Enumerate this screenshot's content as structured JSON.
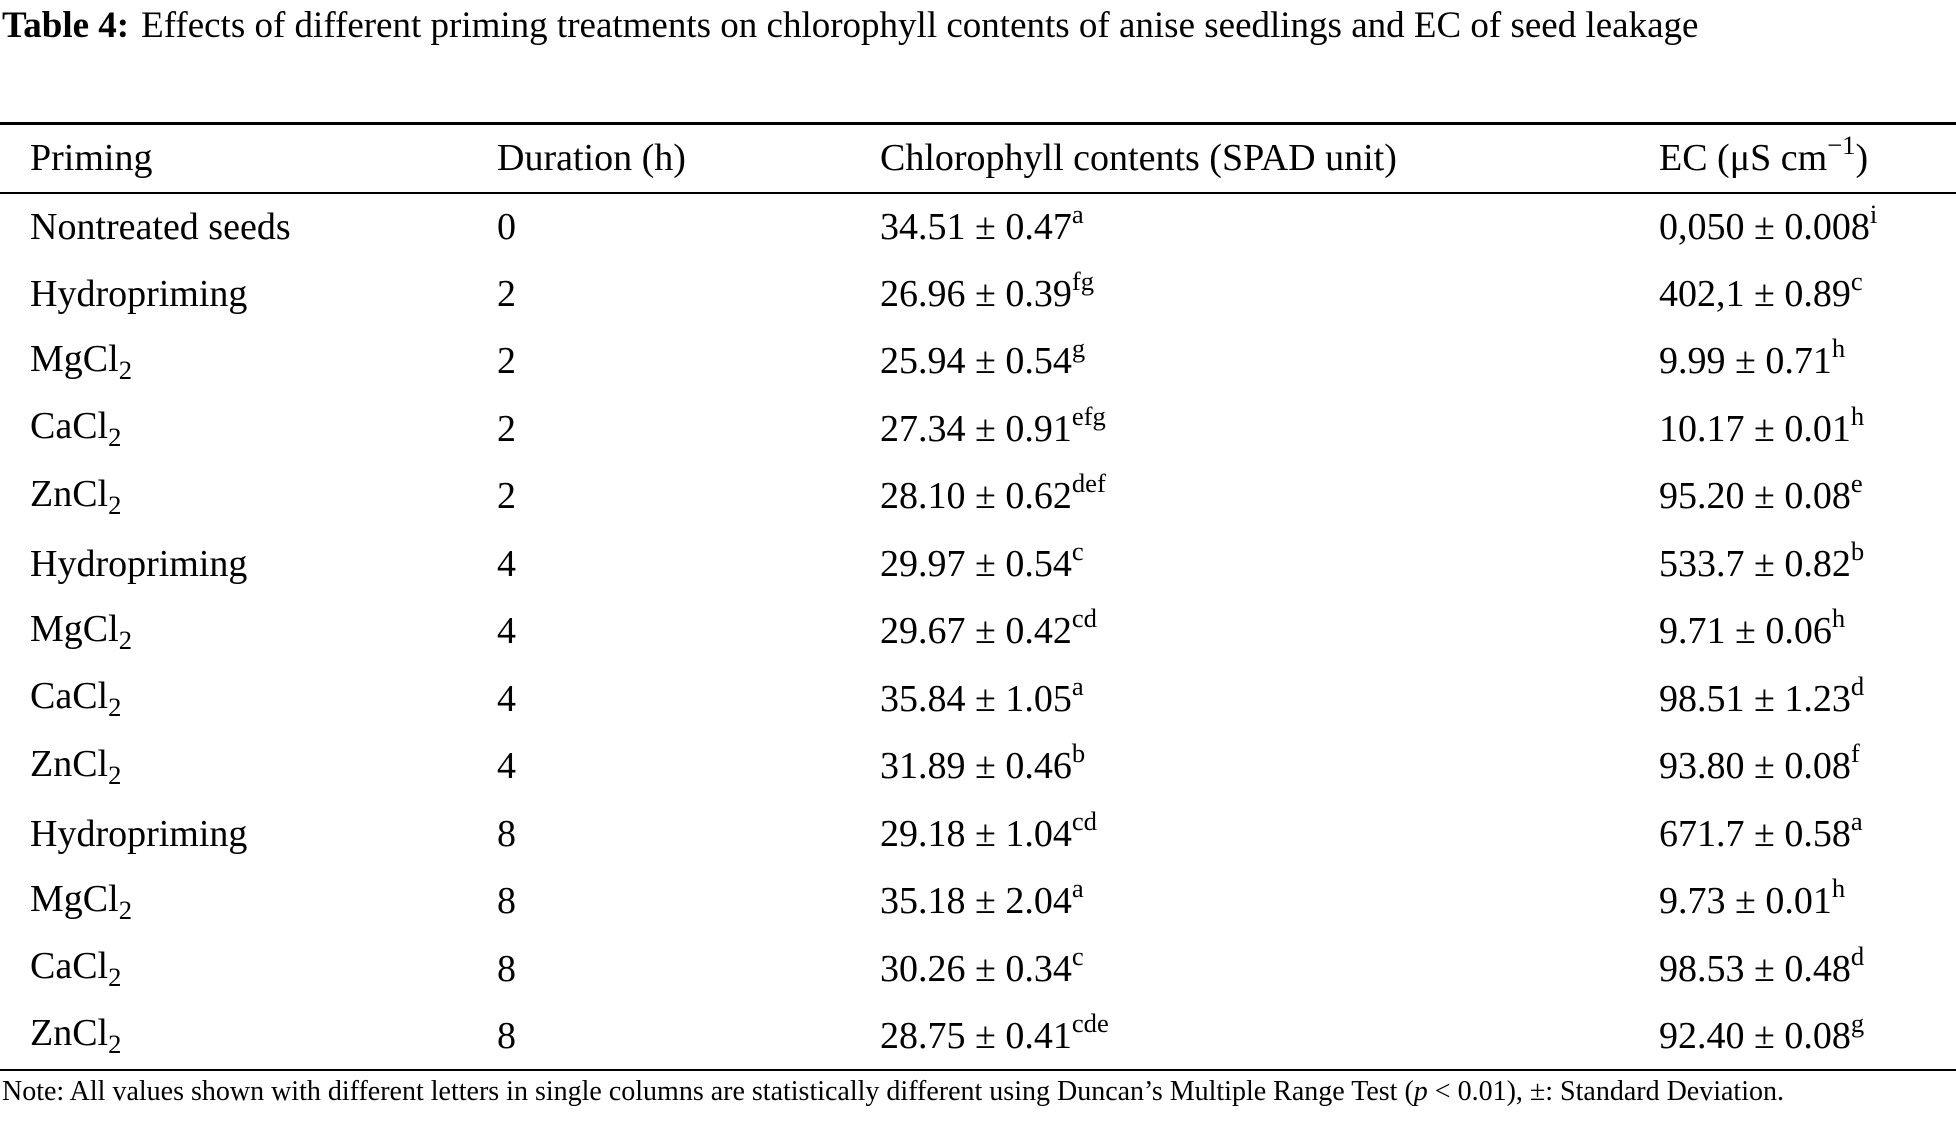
{
  "caption": {
    "label": "Table 4:",
    "text": "Effects of different priming treatments on chlorophyll contents of anise seedlings and EC of seed leakage"
  },
  "table": {
    "header": [
      "Priming",
      "Duration (h)",
      "Chlorophyll contents (SPAD unit)",
      {
        "text": "EC (μS cm",
        "sup": "−1",
        "after": ")"
      }
    ],
    "rows": [
      [
        "Nontreated seeds",
        "0",
        {
          "text": "34.51 ± 0.47",
          "sup": "a"
        },
        {
          "text": "0,050 ± 0.008",
          "sup": "i"
        }
      ],
      [
        "Hydropriming",
        "2",
        {
          "text": "26.96 ± 0.39",
          "sup": "fg"
        },
        {
          "text": "402,1 ± 0.89",
          "sup": "c"
        }
      ],
      [
        {
          "text": "MgCl",
          "sub": "2"
        },
        "2",
        {
          "text": "25.94 ± 0.54",
          "sup": "g"
        },
        {
          "text": "9.99 ± 0.71",
          "sup": "h"
        }
      ],
      [
        {
          "text": "CaCl",
          "sub": "2"
        },
        "2",
        {
          "text": "27.34 ± 0.91",
          "sup": "efg"
        },
        {
          "text": "10.17 ± 0.01",
          "sup": "h"
        }
      ],
      [
        {
          "text": "ZnCl",
          "sub": "2"
        },
        "2",
        {
          "text": "28.10 ± 0.62",
          "sup": "def"
        },
        {
          "text": "95.20 ± 0.08",
          "sup": "e"
        }
      ],
      [
        "Hydropriming",
        "4",
        {
          "text": "29.97 ± 0.54",
          "sup": "c"
        },
        {
          "text": "533.7 ± 0.82",
          "sup": "b"
        }
      ],
      [
        {
          "text": "MgCl",
          "sub": "2"
        },
        "4",
        {
          "text": "29.67 ± 0.42",
          "sup": "cd"
        },
        {
          "text": "9.71 ± 0.06",
          "sup": "h"
        }
      ],
      [
        {
          "text": "CaCl",
          "sub": "2"
        },
        "4",
        {
          "text": "35.84 ± 1.05",
          "sup": "a"
        },
        {
          "text": "98.51 ± 1.23",
          "sup": "d"
        }
      ],
      [
        {
          "text": "ZnCl",
          "sub": "2"
        },
        "4",
        {
          "text": "31.89 ± 0.46",
          "sup": "b"
        },
        {
          "text": "93.80 ± 0.08",
          "sup": "f"
        }
      ],
      [
        "Hydropriming",
        "8",
        {
          "text": "29.18 ± 1.04",
          "sup": "cd"
        },
        {
          "text": "671.7 ± 0.58",
          "sup": "a"
        }
      ],
      [
        {
          "text": "MgCl",
          "sub": "2"
        },
        "8",
        {
          "text": "35.18 ± 2.04",
          "sup": "a"
        },
        {
          "text": "9.73 ± 0.01",
          "sup": "h"
        }
      ],
      [
        {
          "text": "CaCl",
          "sub": "2"
        },
        "8",
        {
          "text": "30.26 ± 0.34",
          "sup": "c"
        },
        {
          "text": "98.53 ± 0.48",
          "sup": "d"
        }
      ],
      [
        {
          "text": "ZnCl",
          "sub": "2"
        },
        "8",
        {
          "text": "28.75 ± 0.41",
          "sup": "cde"
        },
        {
          "text": "92.40 ± 0.08",
          "sup": "g"
        }
      ]
    ]
  },
  "note": {
    "before": "Note: All values shown with different letters in single columns are statistically different using Duncan’s Multiple Range Test (",
    "italic": "p",
    "after": " < 0.01), ±: Standard Deviation."
  }
}
